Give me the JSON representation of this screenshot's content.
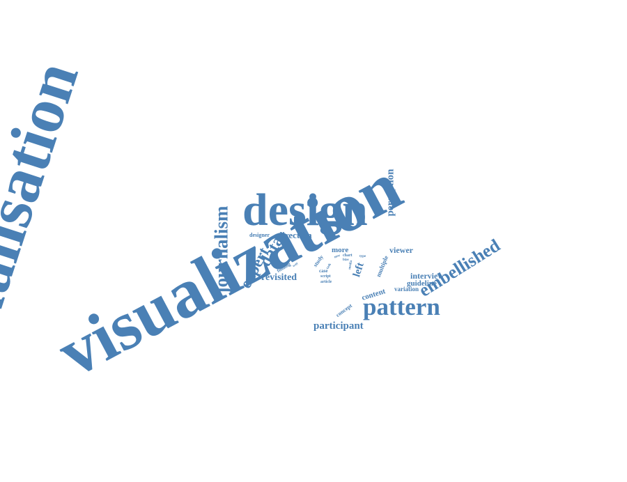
{
  "theme": {
    "word_color": "#4a80b5",
    "background": "#ffffff"
  },
  "words": [
    {
      "text": "visualisation",
      "weight": 1.0
    },
    {
      "text": "visualization",
      "weight": 1.0
    },
    {
      "text": "design",
      "weight": 0.36
    },
    {
      "text": "pattern",
      "weight": 0.2
    },
    {
      "text": "journalism",
      "weight": 0.15
    },
    {
      "text": "embellished",
      "weight": 0.15
    },
    {
      "text": "data",
      "weight": 0.15
    },
    {
      "text": "expert",
      "weight": 0.13
    },
    {
      "text": "perception",
      "weight": 0.11
    },
    {
      "text": "participant",
      "weight": 0.11
    },
    {
      "text": "revisited",
      "weight": 0.09
    },
    {
      "text": "direction",
      "weight": 0.09
    },
    {
      "text": "viewer",
      "weight": 0.08
    },
    {
      "text": "interview",
      "weight": 0.08
    },
    {
      "text": "guideline",
      "weight": 0.08
    },
    {
      "text": "content",
      "weight": 0.08
    },
    {
      "text": "left",
      "weight": 0.09
    },
    {
      "text": "more",
      "weight": 0.08
    },
    {
      "text": "variation",
      "weight": 0.07
    },
    {
      "text": "multiple",
      "weight": 0.06
    },
    {
      "text": "designer",
      "weight": 0.06
    },
    {
      "text": "concept",
      "weight": 0.06
    },
    {
      "text": "study",
      "weight": 0.05
    },
    {
      "text": "case",
      "weight": 0.05
    },
    {
      "text": "script",
      "weight": 0.04
    },
    {
      "text": "article",
      "weight": 0.04
    },
    {
      "text": "finding",
      "weight": 0.04
    },
    {
      "text": "chart",
      "weight": 0.04
    },
    {
      "text": "media",
      "weight": 0.03
    },
    {
      "text": "bias",
      "weight": 0.03
    },
    {
      "text": "type",
      "weight": 0.03
    },
    {
      "text": "new",
      "weight": 0.03
    },
    {
      "text": "task",
      "weight": 0.03
    },
    {
      "text": "way",
      "weight": 0.03
    }
  ]
}
